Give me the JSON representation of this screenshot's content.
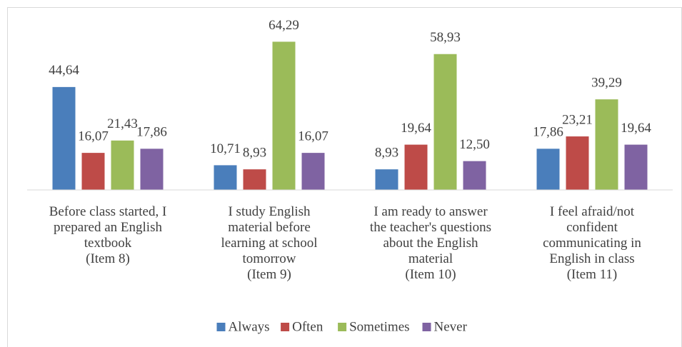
{
  "chart_data": {
    "type": "bar",
    "categories": [
      "Before class started, I\nprepared an English\ntextbook\n(Item 8)",
      "I study English\nmaterial before\nlearning at school\ntomorrow\n(Item 9)",
      "I am ready to answer\nthe teacher's questions\nabout the English\nmaterial\n(Item 10)",
      "I feel afraid/not\nconfident\ncommunicating in\nEnglish in class\n(Item 11)"
    ],
    "series": [
      {
        "name": "Always",
        "color": "#4a7ebb",
        "values": [
          44.64,
          10.71,
          8.93,
          17.86
        ],
        "value_labels": [
          "44,64",
          "10,71",
          "8,93",
          "17,86"
        ]
      },
      {
        "name": "Often",
        "color": "#be4b48",
        "values": [
          16.07,
          8.93,
          19.64,
          23.21
        ],
        "value_labels": [
          "16,07",
          "8,93",
          "19,64",
          "23,21"
        ]
      },
      {
        "name": "Sometimes",
        "color": "#9bbb59",
        "values": [
          21.43,
          64.29,
          58.93,
          39.29
        ],
        "value_labels": [
          "21,43",
          "64,29",
          "58,93",
          "39,29"
        ]
      },
      {
        "name": "Never",
        "color": "#7f63a2",
        "values": [
          17.86,
          16.07,
          12.5,
          19.64
        ],
        "value_labels": [
          "17,86",
          "16,07",
          "12,50",
          "19,64"
        ]
      }
    ],
    "ylim": [
      0,
      70
    ],
    "legend": "bottom"
  }
}
